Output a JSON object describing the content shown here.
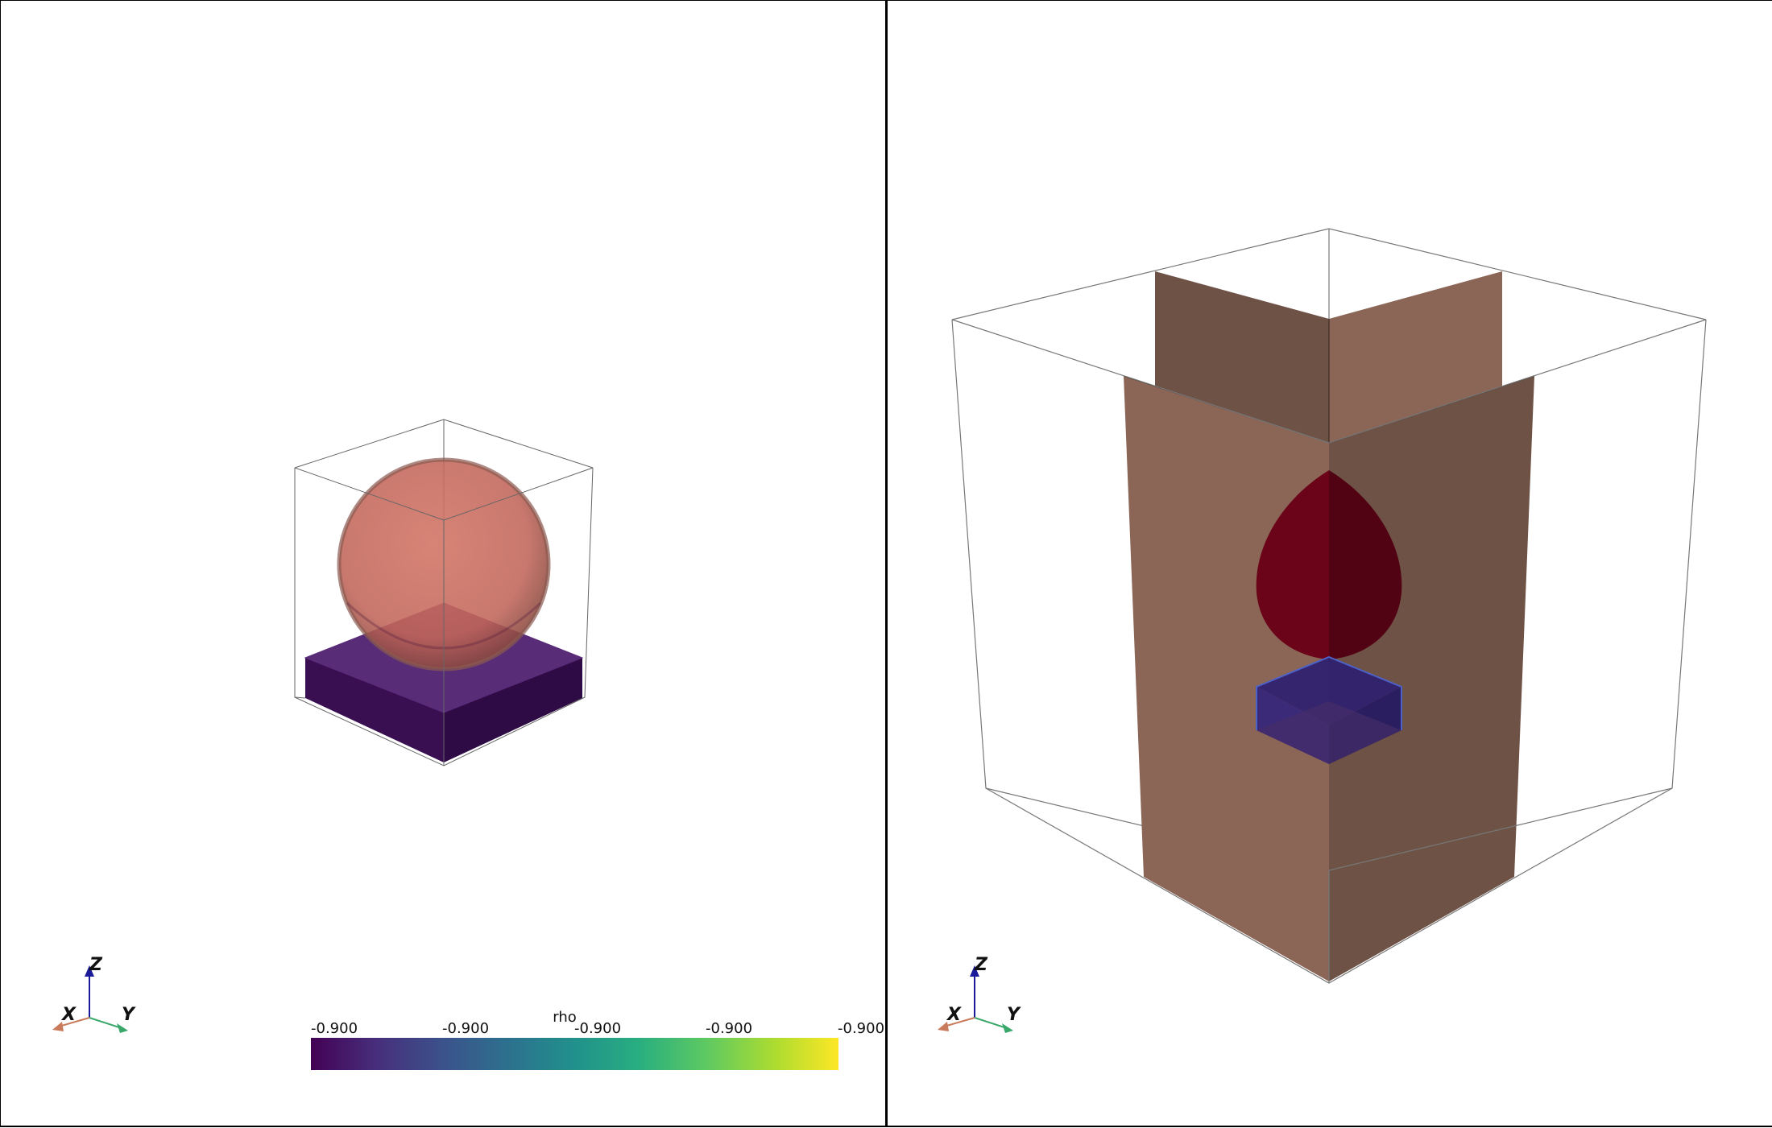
{
  "viewports": [
    {
      "id": "left",
      "orientation_axes": {
        "x_label": "X",
        "y_label": "Y",
        "z_label": "Z"
      },
      "colorbar": {
        "title": "rho",
        "ticks": [
          "-0.900",
          "-0.900",
          "-0.900",
          "-0.900",
          "-0.900"
        ],
        "colormap": "viridis"
      }
    },
    {
      "id": "right",
      "orientation_axes": {
        "x_label": "X",
        "y_label": "Y",
        "z_label": "Z"
      }
    }
  ],
  "colors": {
    "sphere": "#c2665a",
    "slab": "#3d1152",
    "slice_plane_light": "#8b6657",
    "slice_plane_dark": "#6e5246",
    "slice_blob": "#6b0418",
    "slice_box": "#2a1e6b",
    "axis_x": "#c87a5a",
    "axis_y": "#3aa86a",
    "axis_z": "#1a1a9a",
    "outline": "#555555"
  }
}
